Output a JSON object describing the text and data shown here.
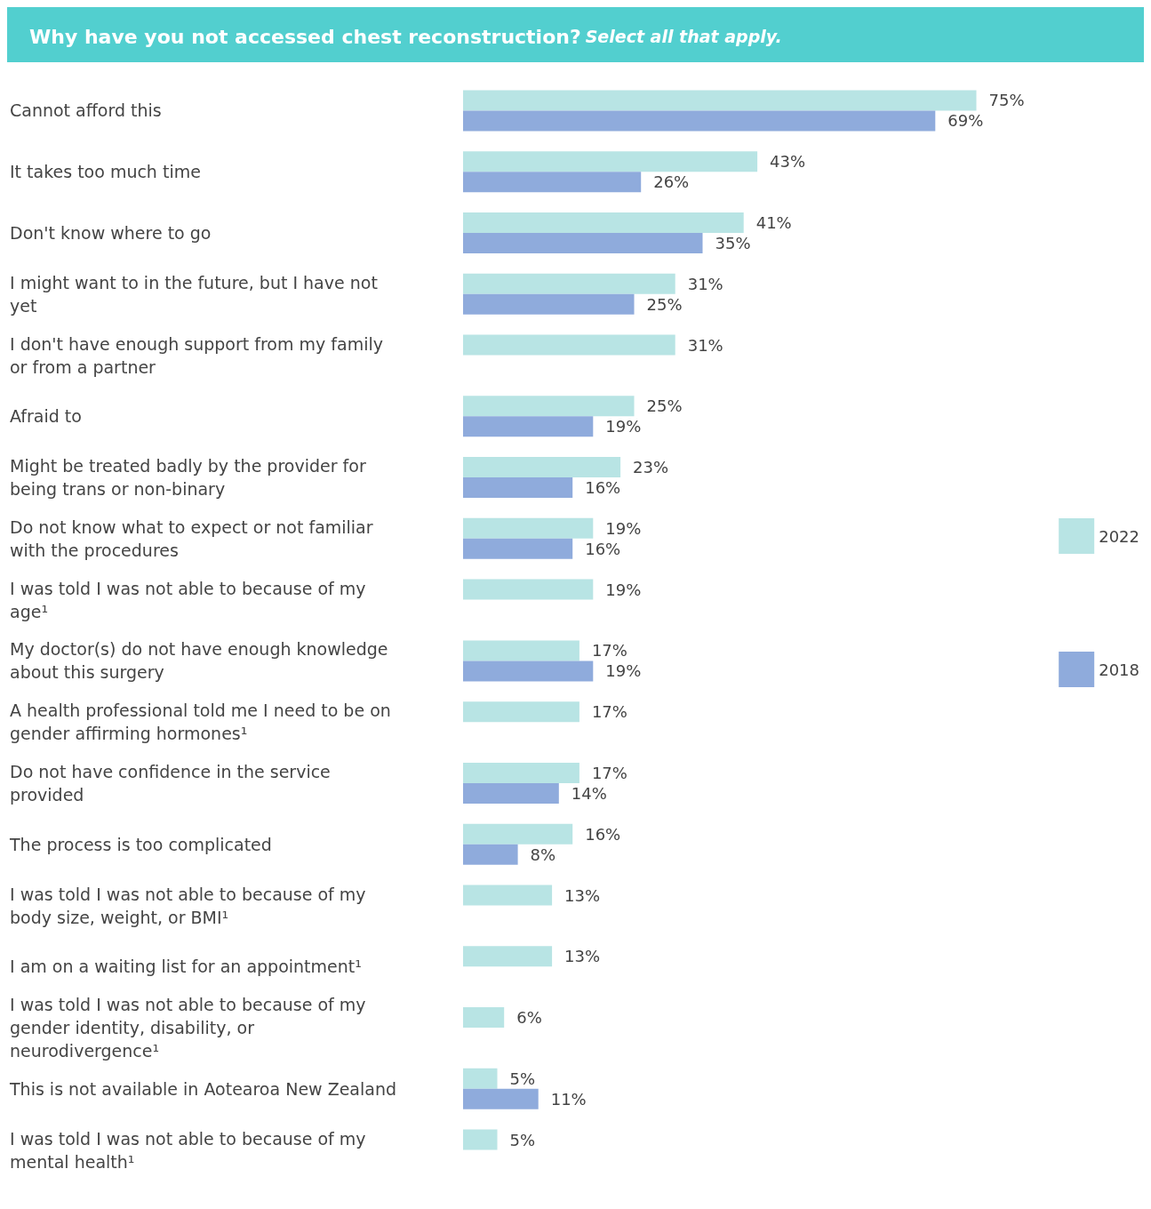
{
  "chart_data": {
    "type": "bar",
    "orientation": "horizontal",
    "title": "Why have you not accessed chest reconstruction?",
    "subtitle": "Select all that apply.",
    "categories": [
      "Cannot afford this",
      "It takes too much time",
      "Don't know where to go",
      "I might want to in the future, but I have not yet",
      "I don't have enough support from my family or from a partner",
      "Afraid to",
      "Might be treated badly by the provider for being trans or non-binary",
      "Do not know what to expect or not familiar with the procedures",
      "I was told I was not able to because of my age¹",
      "My doctor(s) do not have enough knowledge about this surgery",
      "A health professional told me I need to be on gender affirming hormones¹",
      "Do not have confidence in the service provided",
      "The process is too complicated",
      "I was told I was not able to because of my body size, weight, or BMI¹",
      "I am on a waiting list for an appointment¹",
      "I was told I was not able to because of my gender identity, disability, or neurodivergence¹",
      "This is not available in Aotearoa New Zealand",
      "I was told I was not able to because of my mental health¹"
    ],
    "series": [
      {
        "name": "2022",
        "color": "#b8e4e4",
        "values": [
          75,
          43,
          41,
          31,
          31,
          25,
          23,
          19,
          19,
          17,
          17,
          17,
          16,
          13,
          13,
          6,
          5,
          5
        ],
        "value_labels": [
          "75%",
          "43%",
          "41%",
          "31%",
          "31%",
          "25%",
          "23%",
          "19%",
          "19%",
          "17%",
          "17%",
          "17%",
          "16%",
          "13%",
          "13%",
          "6%",
          "5%",
          "5%"
        ]
      },
      {
        "name": "2018",
        "color": "#8fabdc",
        "values": [
          69,
          26,
          35,
          25,
          null,
          19,
          16,
          16,
          null,
          19,
          null,
          14,
          8,
          null,
          null,
          null,
          11,
          null
        ],
        "value_labels": [
          "69%",
          "26%",
          "35%",
          "25%",
          null,
          "19%",
          "16%",
          "16%",
          null,
          "19%",
          null,
          "14%",
          "8%",
          null,
          null,
          null,
          "11%",
          null
        ]
      }
    ],
    "legend": "right"
  }
}
